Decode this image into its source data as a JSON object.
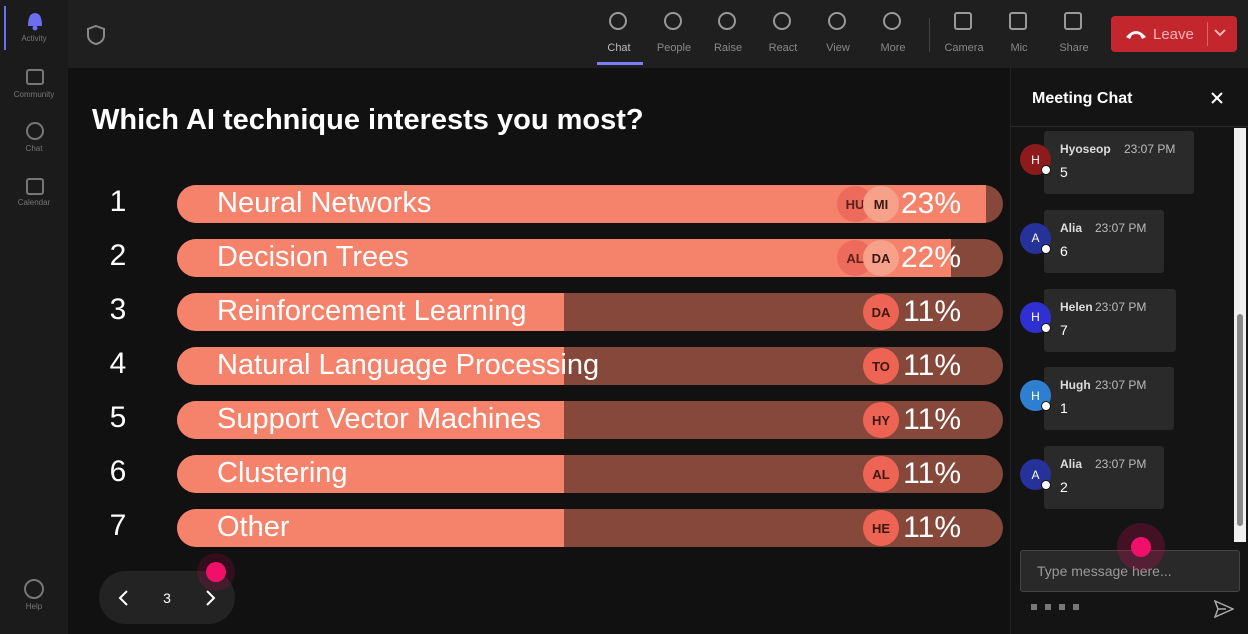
{
  "sidebar": {
    "items": [
      "Activity",
      "Community",
      "Chat",
      "Calendar"
    ],
    "help": "Help"
  },
  "toolbar": {
    "items": [
      "Chat",
      "People",
      "Raise",
      "React",
      "View",
      "More",
      "Camera",
      "Mic",
      "Share"
    ],
    "leave": "Leave"
  },
  "poll": {
    "question": "Which AI technique interests you most?",
    "options": [
      {
        "rank": 1,
        "label": "Neural Networks",
        "voters": [
          "HU",
          "MI"
        ],
        "value": 23,
        "value_label": "23%"
      },
      {
        "rank": 2,
        "label": "Decision Trees",
        "voters": [
          "AL",
          "DA"
        ],
        "value": 22,
        "value_label": "22%"
      },
      {
        "rank": 3,
        "label": "Reinforcement Learning",
        "voters": [
          "DA"
        ],
        "value": 11,
        "value_label": "11%"
      },
      {
        "rank": 4,
        "label": "Natural Language Processing",
        "voters": [
          "TO"
        ],
        "value": 11,
        "value_label": "11%"
      },
      {
        "rank": 5,
        "label": "Support Vector Machines",
        "voters": [
          "HY"
        ],
        "value": 11,
        "value_label": "11%"
      },
      {
        "rank": 6,
        "label": "Clustering",
        "voters": [
          "AL"
        ],
        "value": 11,
        "value_label": "11%"
      },
      {
        "rank": 7,
        "label": "Other",
        "voters": [
          "HE"
        ],
        "value": 11,
        "value_label": "11%"
      }
    ],
    "page": 3
  },
  "chat": {
    "title": "Meeting Chat",
    "messages": [
      {
        "initial": "H",
        "name": "Hyoseop",
        "time": "23:07 PM",
        "text": "5",
        "color": "#8e1b1b"
      },
      {
        "initial": "A",
        "name": "Alia",
        "time": "23:07 PM",
        "text": "6",
        "color": "#26319a"
      },
      {
        "initial": "H",
        "name": "Helen",
        "time": "23:07 PM",
        "text": "7",
        "color": "#2f2fd2"
      },
      {
        "initial": "H",
        "name": "Hugh",
        "time": "23:07 PM",
        "text": "1",
        "color": "#2f7fd1"
      },
      {
        "initial": "A",
        "name": "Alia",
        "time": "23:07 PM",
        "text": "2",
        "color": "#26319a"
      }
    ],
    "placeholder": "Type message here..."
  }
}
